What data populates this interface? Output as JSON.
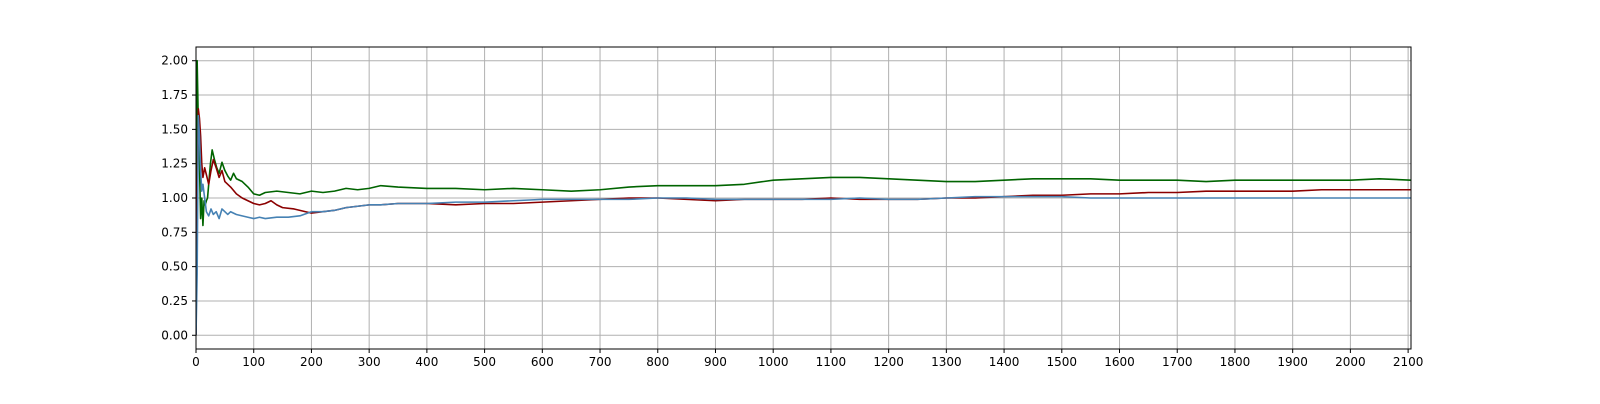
{
  "chart_data": {
    "type": "line",
    "title": "",
    "xlabel": "",
    "ylabel": "",
    "xlim": [
      0,
      2105
    ],
    "ylim": [
      -0.1,
      2.1
    ],
    "x_ticks": [
      0,
      100,
      200,
      300,
      400,
      500,
      600,
      700,
      800,
      900,
      1000,
      1100,
      1200,
      1300,
      1400,
      1500,
      1600,
      1700,
      1800,
      1900,
      2000,
      2100
    ],
    "y_ticks": [
      0.0,
      0.25,
      0.5,
      0.75,
      1.0,
      1.25,
      1.5,
      1.75,
      2.0
    ],
    "y_tick_labels": [
      "0.00",
      "0.25",
      "0.50",
      "0.75",
      "1.00",
      "1.25",
      "1.50",
      "1.75",
      "2.00"
    ],
    "grid": true,
    "legend": "none",
    "series": [
      {
        "color": "#006400",
        "points": [
          [
            0,
            0.0
          ],
          [
            2,
            2.0
          ],
          [
            4,
            1.55
          ],
          [
            6,
            1.25
          ],
          [
            8,
            0.85
          ],
          [
            10,
            1.0
          ],
          [
            12,
            0.8
          ],
          [
            14,
            0.98
          ],
          [
            16,
            0.95
          ],
          [
            18,
            0.98
          ],
          [
            20,
            1.0
          ],
          [
            22,
            1.1
          ],
          [
            25,
            1.25
          ],
          [
            28,
            1.35
          ],
          [
            32,
            1.28
          ],
          [
            36,
            1.22
          ],
          [
            40,
            1.18
          ],
          [
            45,
            1.26
          ],
          [
            50,
            1.2
          ],
          [
            55,
            1.16
          ],
          [
            60,
            1.13
          ],
          [
            65,
            1.18
          ],
          [
            70,
            1.14
          ],
          [
            80,
            1.12
          ],
          [
            90,
            1.08
          ],
          [
            100,
            1.03
          ],
          [
            110,
            1.02
          ],
          [
            120,
            1.04
          ],
          [
            140,
            1.05
          ],
          [
            160,
            1.04
          ],
          [
            180,
            1.03
          ],
          [
            200,
            1.05
          ],
          [
            220,
            1.04
          ],
          [
            240,
            1.05
          ],
          [
            260,
            1.07
          ],
          [
            280,
            1.06
          ],
          [
            300,
            1.07
          ],
          [
            320,
            1.09
          ],
          [
            350,
            1.08
          ],
          [
            400,
            1.07
          ],
          [
            450,
            1.07
          ],
          [
            500,
            1.06
          ],
          [
            550,
            1.07
          ],
          [
            600,
            1.06
          ],
          [
            650,
            1.05
          ],
          [
            700,
            1.06
          ],
          [
            750,
            1.08
          ],
          [
            800,
            1.09
          ],
          [
            850,
            1.09
          ],
          [
            900,
            1.09
          ],
          [
            950,
            1.1
          ],
          [
            1000,
            1.13
          ],
          [
            1050,
            1.14
          ],
          [
            1100,
            1.15
          ],
          [
            1150,
            1.15
          ],
          [
            1200,
            1.14
          ],
          [
            1250,
            1.13
          ],
          [
            1300,
            1.12
          ],
          [
            1350,
            1.12
          ],
          [
            1400,
            1.13
          ],
          [
            1450,
            1.14
          ],
          [
            1500,
            1.14
          ],
          [
            1550,
            1.14
          ],
          [
            1600,
            1.13
          ],
          [
            1650,
            1.13
          ],
          [
            1700,
            1.13
          ],
          [
            1750,
            1.12
          ],
          [
            1800,
            1.13
          ],
          [
            1850,
            1.13
          ],
          [
            1900,
            1.13
          ],
          [
            1950,
            1.13
          ],
          [
            2000,
            1.13
          ],
          [
            2050,
            1.14
          ],
          [
            2105,
            1.13
          ]
        ]
      },
      {
        "color": "#8b0000",
        "points": [
          [
            0,
            0.0
          ],
          [
            2,
            1.0
          ],
          [
            4,
            1.65
          ],
          [
            6,
            1.58
          ],
          [
            8,
            1.45
          ],
          [
            10,
            1.25
          ],
          [
            12,
            1.15
          ],
          [
            15,
            1.22
          ],
          [
            18,
            1.17
          ],
          [
            22,
            1.1
          ],
          [
            26,
            1.2
          ],
          [
            30,
            1.28
          ],
          [
            35,
            1.22
          ],
          [
            40,
            1.15
          ],
          [
            45,
            1.2
          ],
          [
            50,
            1.12
          ],
          [
            55,
            1.1
          ],
          [
            60,
            1.08
          ],
          [
            70,
            1.03
          ],
          [
            80,
            1.0
          ],
          [
            90,
            0.98
          ],
          [
            100,
            0.96
          ],
          [
            110,
            0.95
          ],
          [
            120,
            0.96
          ],
          [
            130,
            0.98
          ],
          [
            140,
            0.95
          ],
          [
            150,
            0.93
          ],
          [
            170,
            0.92
          ],
          [
            190,
            0.9
          ],
          [
            200,
            0.89
          ],
          [
            220,
            0.9
          ],
          [
            240,
            0.91
          ],
          [
            260,
            0.93
          ],
          [
            280,
            0.94
          ],
          [
            300,
            0.95
          ],
          [
            320,
            0.95
          ],
          [
            350,
            0.96
          ],
          [
            400,
            0.96
          ],
          [
            450,
            0.95
          ],
          [
            500,
            0.96
          ],
          [
            550,
            0.96
          ],
          [
            600,
            0.97
          ],
          [
            650,
            0.98
          ],
          [
            700,
            0.99
          ],
          [
            750,
            1.0
          ],
          [
            800,
            1.0
          ],
          [
            850,
            0.99
          ],
          [
            900,
            0.98
          ],
          [
            950,
            0.99
          ],
          [
            1000,
            0.99
          ],
          [
            1050,
            0.99
          ],
          [
            1100,
            1.0
          ],
          [
            1150,
            0.99
          ],
          [
            1200,
            0.99
          ],
          [
            1250,
            0.99
          ],
          [
            1300,
            1.0
          ],
          [
            1350,
            1.0
          ],
          [
            1400,
            1.01
          ],
          [
            1450,
            1.02
          ],
          [
            1500,
            1.02
          ],
          [
            1550,
            1.03
          ],
          [
            1600,
            1.03
          ],
          [
            1650,
            1.04
          ],
          [
            1700,
            1.04
          ],
          [
            1750,
            1.05
          ],
          [
            1800,
            1.05
          ],
          [
            1850,
            1.05
          ],
          [
            1900,
            1.05
          ],
          [
            1950,
            1.06
          ],
          [
            2000,
            1.06
          ],
          [
            2050,
            1.06
          ],
          [
            2105,
            1.06
          ]
        ]
      },
      {
        "color": "#4682b4",
        "points": [
          [
            0,
            0.0
          ],
          [
            2,
            0.45
          ],
          [
            4,
            1.6
          ],
          [
            6,
            1.45
          ],
          [
            8,
            1.2
          ],
          [
            10,
            1.05
          ],
          [
            12,
            1.1
          ],
          [
            15,
            1.0
          ],
          [
            18,
            0.9
          ],
          [
            22,
            0.87
          ],
          [
            26,
            0.92
          ],
          [
            30,
            0.88
          ],
          [
            35,
            0.9
          ],
          [
            40,
            0.85
          ],
          [
            45,
            0.92
          ],
          [
            50,
            0.9
          ],
          [
            55,
            0.88
          ],
          [
            60,
            0.9
          ],
          [
            70,
            0.88
          ],
          [
            80,
            0.87
          ],
          [
            90,
            0.86
          ],
          [
            100,
            0.85
          ],
          [
            110,
            0.86
          ],
          [
            120,
            0.85
          ],
          [
            140,
            0.86
          ],
          [
            160,
            0.86
          ],
          [
            180,
            0.87
          ],
          [
            200,
            0.9
          ],
          [
            220,
            0.9
          ],
          [
            240,
            0.91
          ],
          [
            260,
            0.93
          ],
          [
            280,
            0.94
          ],
          [
            300,
            0.95
          ],
          [
            320,
            0.95
          ],
          [
            350,
            0.96
          ],
          [
            400,
            0.96
          ],
          [
            450,
            0.97
          ],
          [
            500,
            0.97
          ],
          [
            550,
            0.98
          ],
          [
            600,
            0.99
          ],
          [
            650,
            0.99
          ],
          [
            700,
            0.99
          ],
          [
            750,
            0.99
          ],
          [
            800,
            1.0
          ],
          [
            850,
            1.0
          ],
          [
            900,
            0.99
          ],
          [
            950,
            0.99
          ],
          [
            1000,
            0.99
          ],
          [
            1050,
            0.99
          ],
          [
            1100,
            0.99
          ],
          [
            1150,
            1.0
          ],
          [
            1200,
            0.99
          ],
          [
            1250,
            0.99
          ],
          [
            1300,
            1.0
          ],
          [
            1350,
            1.01
          ],
          [
            1400,
            1.01
          ],
          [
            1450,
            1.01
          ],
          [
            1500,
            1.01
          ],
          [
            1550,
            1.0
          ],
          [
            1600,
            1.0
          ],
          [
            1650,
            1.0
          ],
          [
            1700,
            1.0
          ],
          [
            1750,
            1.0
          ],
          [
            1800,
            1.0
          ],
          [
            1850,
            1.0
          ],
          [
            1900,
            1.0
          ],
          [
            1950,
            1.0
          ],
          [
            2000,
            1.0
          ],
          [
            2050,
            1.0
          ],
          [
            2105,
            1.0
          ]
        ]
      }
    ]
  }
}
